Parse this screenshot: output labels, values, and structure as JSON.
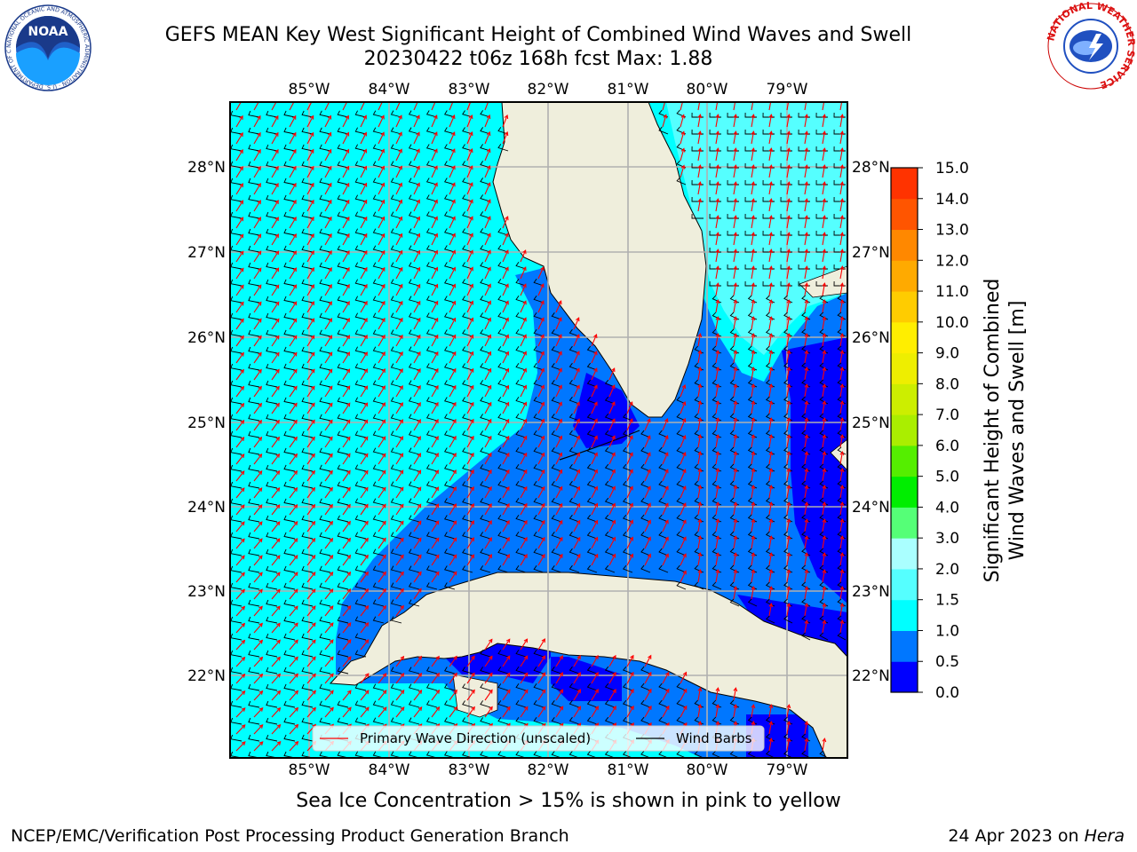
{
  "title": {
    "line1": "GEFS MEAN Key West Significant Height of Combined Wind Waves and Swell",
    "line2": "20230422 t06z 168h fcst   Max: 1.88"
  },
  "logos": {
    "left": "NOAA",
    "left_ring": "NATIONAL OCEANIC AND ATMOSPHERIC ADMINISTRATION · U.S. DEPARTMENT OF COMMERCE",
    "right_ring": "NATIONAL WEATHER SERVICE"
  },
  "map": {
    "lon_labels": [
      "85°W",
      "84°W",
      "83°W",
      "82°W",
      "81°W",
      "80°W",
      "79°W"
    ],
    "lat_labels": [
      "28°N",
      "27°N",
      "26°N",
      "25°N",
      "24°N",
      "23°N",
      "22°N"
    ],
    "lon_range": [
      -86.0,
      -78.3
    ],
    "lat_range": [
      21.1,
      28.75
    ],
    "land_color": "#efeedc",
    "legend": {
      "wave_label": "Primary Wave Direction (unscaled)",
      "wave_color": "#ff0000",
      "barb_label": "Wind Barbs",
      "barb_color": "#000000"
    }
  },
  "colorbar": {
    "label_line1": "Significant Height of Combined",
    "label_line2": "Wind Waves and Swell [m]",
    "ticks": [
      "0.0",
      "0.5",
      "1.0",
      "1.5",
      "2.0",
      "3.0",
      "4.0",
      "5.0",
      "6.0",
      "7.0",
      "8.0",
      "9.0",
      "10.0",
      "11.0",
      "12.0",
      "13.0",
      "14.0",
      "15.0"
    ],
    "colors": [
      "#0000ff",
      "#0077ff",
      "#00ffff",
      "#55ffff",
      "#aaffff",
      "#55ff77",
      "#00ee00",
      "#55ee00",
      "#aaee00",
      "#ccee00",
      "#eeee00",
      "#ffee00",
      "#ffcc00",
      "#ffaa00",
      "#ff8800",
      "#ff5500",
      "#ff3300",
      "#ff0000"
    ]
  },
  "subcaption": "Sea Ice Concentration > 15% is shown in pink to yellow",
  "footer": {
    "left": "NCEP/EMC/Verification Post Processing Product Generation Branch",
    "right_date": "24 Apr 2023 on ",
    "right_host": "Hera"
  }
}
